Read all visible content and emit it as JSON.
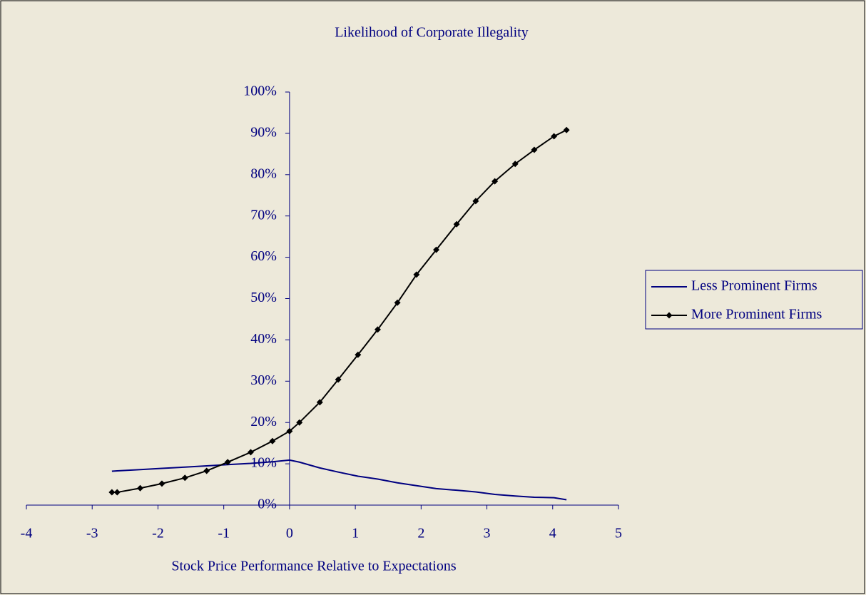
{
  "chart_data": {
    "type": "line",
    "title": "Likelihood of Corporate Illegality",
    "x_label": "Stock Price Performance Relative to Expectations",
    "x": [
      -2.7,
      -2.62,
      -2.27,
      -1.94,
      -1.59,
      -1.26,
      -0.94,
      -0.59,
      -0.26,
      0,
      0.15,
      0.46,
      0.74,
      1.04,
      1.34,
      1.64,
      1.93,
      2.23,
      2.54,
      2.83,
      3.12,
      3.43,
      3.72,
      4.02,
      4.21
    ],
    "series": [
      {
        "name": "Less Prominent Firms",
        "color": "#000080",
        "marker": "none",
        "values": [
          8.2,
          8.3,
          8.6,
          8.9,
          9.2,
          9.5,
          9.8,
          10.1,
          10.5,
          10.9,
          10.4,
          9.0,
          8.0,
          7.0,
          6.3,
          5.4,
          4.7,
          4.0,
          3.6,
          3.2,
          2.6,
          2.2,
          1.9,
          1.8,
          1.3
        ]
      },
      {
        "name": "More Prominent Firms",
        "color": "#000000",
        "marker": "diamond",
        "values": [
          3.1,
          3.1,
          4.1,
          5.2,
          6.6,
          8.3,
          10.4,
          12.8,
          15.5,
          17.9,
          20.0,
          24.9,
          30.4,
          36.4,
          42.5,
          49.0,
          55.8,
          61.8,
          68.0,
          73.6,
          78.4,
          82.6,
          86.0,
          89.3,
          90.8
        ]
      }
    ],
    "xlim": [
      -4,
      5
    ],
    "xticks": [
      -4,
      -3,
      -2,
      -1,
      0,
      1,
      2,
      3,
      4,
      5
    ],
    "ylim": [
      0,
      100
    ],
    "yticks": [
      {
        "value": 0,
        "label": "0%"
      },
      {
        "value": 10,
        "label": "10%"
      },
      {
        "value": 20,
        "label": "20%"
      },
      {
        "value": 30,
        "label": "30%"
      },
      {
        "value": 40,
        "label": "40%"
      },
      {
        "value": 50,
        "label": "50%"
      },
      {
        "value": 60,
        "label": "60%"
      },
      {
        "value": 70,
        "label": "70%"
      },
      {
        "value": 80,
        "label": "80%"
      },
      {
        "value": 90,
        "label": "90%"
      },
      {
        "value": 100,
        "label": "100%"
      }
    ],
    "grid": false,
    "legend": "right"
  }
}
